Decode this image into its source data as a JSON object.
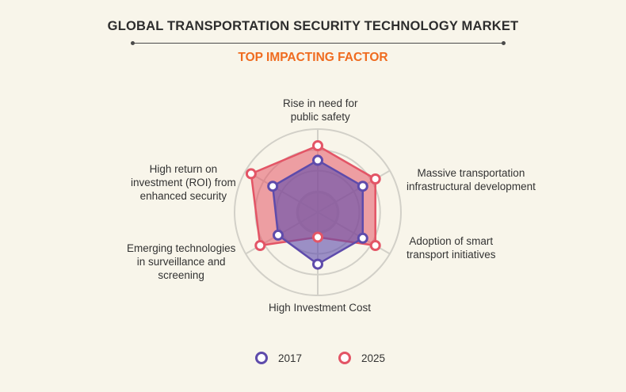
{
  "header": {
    "title": "GLOBAL TRANSPORTATION SECURITY TECHNOLOGY MARKET",
    "subtitle": "TOP IMPACTING FACTOR"
  },
  "chart_data": {
    "type": "radar",
    "title": "GLOBAL TRANSPORTATION SECURITY TECHNOLOGY MARKET",
    "subtitle": "TOP IMPACTING FACTOR",
    "categories": [
      "Rise in need for public safety",
      "Massive transportation infrastructural development",
      "Adoption of smart transport initiatives",
      "High Investment Cost",
      "Emerging technologies in surveillance and screening",
      "High return on investment (ROI) from enhanced security"
    ],
    "category_lines": [
      [
        "Rise in need for",
        "public safety"
      ],
      [
        "Massive transportation",
        "infrastructural development"
      ],
      [
        "Adoption of smart",
        "transport initiatives"
      ],
      [
        "High Investment Cost"
      ],
      [
        "Emerging technologies",
        "in surveillance and",
        "screening"
      ],
      [
        "High return on",
        "investment (ROI) from",
        "enhanced security"
      ]
    ],
    "rlim": [
      0,
      4
    ],
    "rings": 4,
    "series": [
      {
        "name": "2017",
        "values": [
          2.5,
          2.5,
          2.5,
          2.5,
          2.2,
          2.5
        ],
        "color": "#5e4bab"
      },
      {
        "name": "2025",
        "values": [
          3.2,
          3.2,
          3.2,
          1.2,
          3.2,
          3.7
        ],
        "color": "#e35566"
      }
    ],
    "legend_position": "bottom"
  },
  "colors": {
    "background": "#f8f5ea",
    "title": "#2d2d2d",
    "subtitle": "#ef6b1f",
    "grid": "#d2d0c8"
  }
}
